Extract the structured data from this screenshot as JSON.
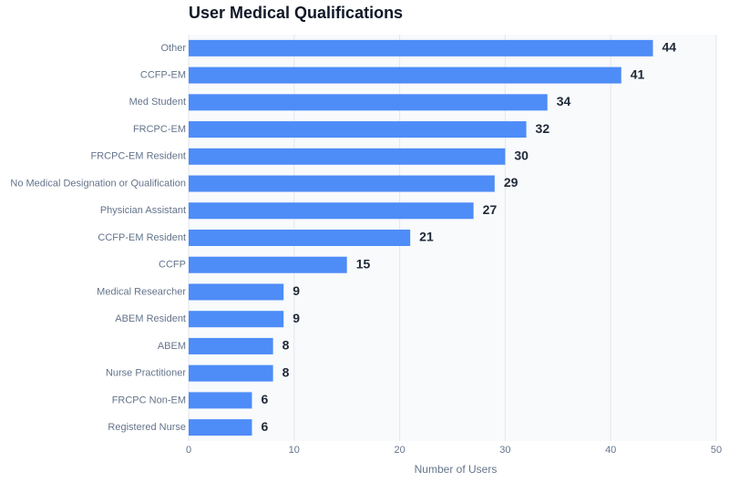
{
  "chart_data": {
    "type": "bar",
    "orientation": "horizontal",
    "title": "User Medical Qualifications",
    "x_label": "Number of Users",
    "categories": [
      "Other",
      "CCFP-EM",
      "Med Student",
      "FRCPC-EM",
      "FRCPC-EM Resident",
      "No Medical Designation or Qualification",
      "Physician Assistant",
      "CCFP-EM Resident",
      "CCFP",
      "Medical Researcher",
      "ABEM Resident",
      "ABEM",
      "Nurse Practitioner",
      "FRCPC Non-EM",
      "Registered Nurse"
    ],
    "values": [
      44,
      41,
      34,
      32,
      30,
      29,
      27,
      21,
      15,
      9,
      9,
      8,
      8,
      6,
      6
    ],
    "color": "#4e8cf7",
    "xlim": [
      0,
      50
    ],
    "xticks": [
      0,
      10,
      20,
      30,
      40,
      50
    ],
    "grid": true
  }
}
